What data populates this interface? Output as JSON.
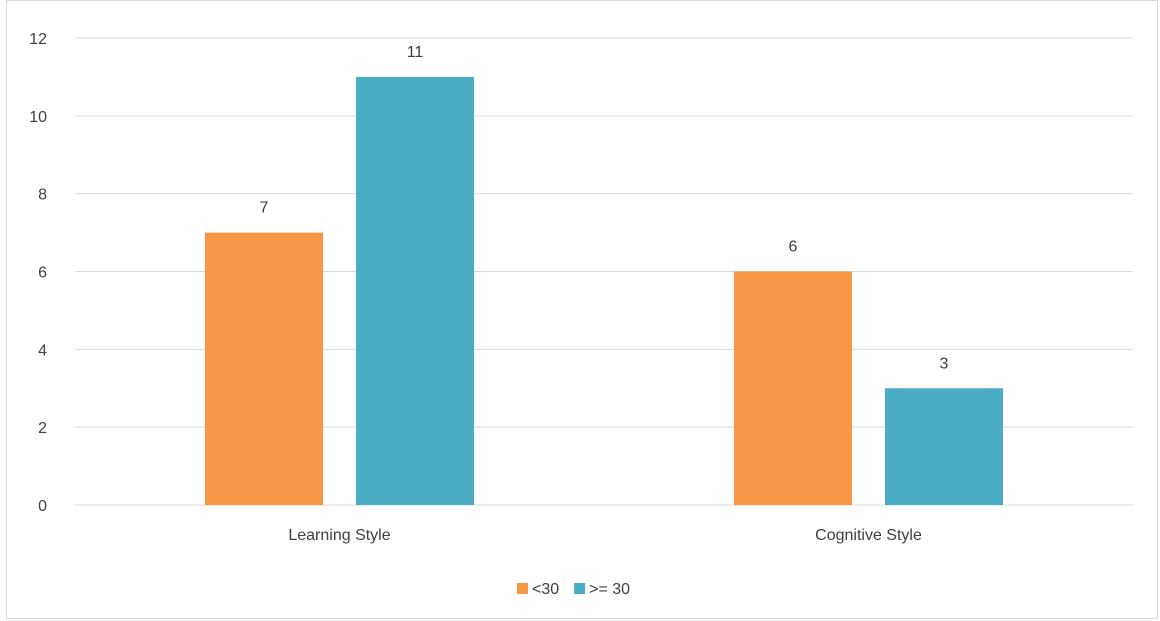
{
  "chart_data": {
    "type": "bar",
    "categories": [
      "Learning Style",
      "Cognitive Style"
    ],
    "series": [
      {
        "name": "<30",
        "values": [
          7,
          6
        ],
        "color": "#f79646"
      },
      {
        "name": ">= 30",
        "values": [
          11,
          3
        ],
        "color": "#4bacc6"
      }
    ],
    "title": "",
    "xlabel": "",
    "ylabel": "",
    "ylim": [
      0,
      12
    ],
    "yticks": [
      0,
      2,
      4,
      6,
      8,
      10,
      12
    ],
    "grid": true,
    "legend": "bottom-center",
    "data_labels": true
  },
  "colors": {
    "grid": "#d9d9d9",
    "text": "#404040"
  }
}
